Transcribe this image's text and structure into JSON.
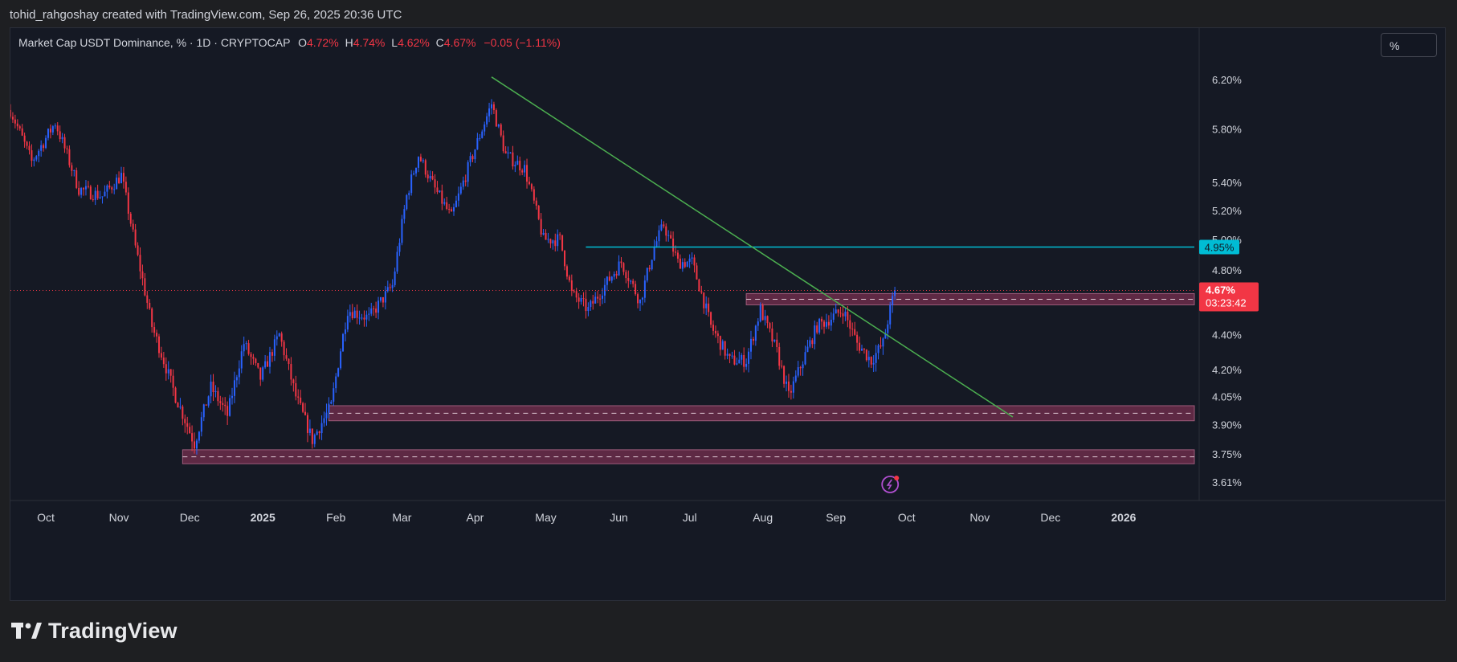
{
  "header": {
    "credit": "tohid_rahgoshay created with TradingView.com, Sep 26, 2025 20:36 UTC"
  },
  "legend": {
    "symbol": "Market Cap USDT Dominance, % · 1D · CRYPTOCAP",
    "o_label": "O",
    "o_value": "4.72%",
    "h_label": "H",
    "h_value": "4.74%",
    "l_label": "L",
    "l_value": "4.62%",
    "c_label": "C",
    "c_value": "4.67%",
    "change": "−0.05 (−1.11%)"
  },
  "toolbar": {
    "scale_button": "%"
  },
  "brand": {
    "name": "TradingView",
    "icon": "tradingview-logo-icon"
  },
  "colors": {
    "up": "#2962ff",
    "down": "#f23645",
    "trendline": "#4caf50",
    "resistance": "#00bcd4",
    "zone_fill": "#6b2d4a",
    "background": "#151924"
  },
  "chart_data": {
    "type": "candlestick",
    "symbol": "USDT.D",
    "timeframe": "1D",
    "y_scale": "log",
    "ylim": [
      3.56,
      6.5
    ],
    "y_ticks": [
      "6.20%",
      "5.80%",
      "5.40%",
      "5.20%",
      "5.00%",
      "4.80%",
      "4.40%",
      "4.20%",
      "4.05%",
      "3.90%",
      "3.75%",
      "3.61%"
    ],
    "x_ticks": [
      "Oct",
      "Nov",
      "Dec",
      "2025",
      "Feb",
      "Mar",
      "Apr",
      "May",
      "Jun",
      "Jul",
      "Aug",
      "Sep",
      "Oct",
      "Nov",
      "Dec",
      "2026"
    ],
    "x_range": [
      "2024-09-16",
      "2026-01-31"
    ],
    "price_path": [
      [
        "2024-09-16",
        5.95
      ],
      [
        "2024-09-25",
        5.55
      ],
      [
        "2024-10-05",
        5.85
      ],
      [
        "2024-10-15",
        5.35
      ],
      [
        "2024-10-25",
        5.3
      ],
      [
        "2024-11-02",
        5.45
      ],
      [
        "2024-11-08",
        4.95
      ],
      [
        "2024-11-15",
        4.45
      ],
      [
        "2024-11-25",
        4.05
      ],
      [
        "2024-12-03",
        3.8
      ],
      [
        "2024-12-10",
        4.1
      ],
      [
        "2024-12-17",
        3.95
      ],
      [
        "2024-12-24",
        4.35
      ],
      [
        "2024-12-31",
        4.15
      ],
      [
        "2025-01-08",
        4.4
      ],
      [
        "2025-01-15",
        4.05
      ],
      [
        "2025-01-22",
        3.82
      ],
      [
        "2025-01-30",
        4.0
      ],
      [
        "2025-02-06",
        4.55
      ],
      [
        "2025-02-15",
        4.5
      ],
      [
        "2025-02-25",
        4.7
      ],
      [
        "2025-03-03",
        5.3
      ],
      [
        "2025-03-08",
        5.6
      ],
      [
        "2025-03-15",
        5.35
      ],
      [
        "2025-03-22",
        5.15
      ],
      [
        "2025-03-30",
        5.55
      ],
      [
        "2025-04-08",
        6.0
      ],
      [
        "2025-04-14",
        5.6
      ],
      [
        "2025-04-22",
        5.5
      ],
      [
        "2025-04-30",
        5.0
      ],
      [
        "2025-05-07",
        5.0
      ],
      [
        "2025-05-12",
        4.65
      ],
      [
        "2025-05-19",
        4.55
      ],
      [
        "2025-05-26",
        4.7
      ],
      [
        "2025-06-02",
        4.85
      ],
      [
        "2025-06-10",
        4.6
      ],
      [
        "2025-06-16",
        4.95
      ],
      [
        "2025-06-20",
        5.1
      ],
      [
        "2025-06-26",
        4.85
      ],
      [
        "2025-07-02",
        4.85
      ],
      [
        "2025-07-10",
        4.45
      ],
      [
        "2025-07-18",
        4.25
      ],
      [
        "2025-07-25",
        4.25
      ],
      [
        "2025-07-31",
        4.55
      ],
      [
        "2025-08-07",
        4.3
      ],
      [
        "2025-08-12",
        4.05
      ],
      [
        "2025-08-18",
        4.25
      ],
      [
        "2025-08-24",
        4.45
      ],
      [
        "2025-08-30",
        4.5
      ],
      [
        "2025-09-04",
        4.55
      ],
      [
        "2025-09-10",
        4.35
      ],
      [
        "2025-09-16",
        4.25
      ],
      [
        "2025-09-21",
        4.35
      ],
      [
        "2025-09-24",
        4.55
      ],
      [
        "2025-09-26",
        4.67
      ]
    ],
    "last_price": 4.67,
    "last_price_label": "4.67%",
    "countdown": "03:23:42",
    "resistance": {
      "value": 4.95,
      "label": "4.95%",
      "from": "2025-05-18"
    },
    "trendline": {
      "from": [
        "2025-04-08",
        6.22
      ],
      "to": [
        "2025-11-15",
        3.94
      ]
    },
    "zones": [
      {
        "from": "2025-07-25",
        "to": "2026-01-31",
        "low": 4.58,
        "high": 4.65
      },
      {
        "from": "2025-01-29",
        "to": "2026-01-31",
        "low": 3.92,
        "high": 4.0
      },
      {
        "from": "2024-11-28",
        "to": "2026-01-31",
        "low": 3.7,
        "high": 3.77
      }
    ]
  }
}
